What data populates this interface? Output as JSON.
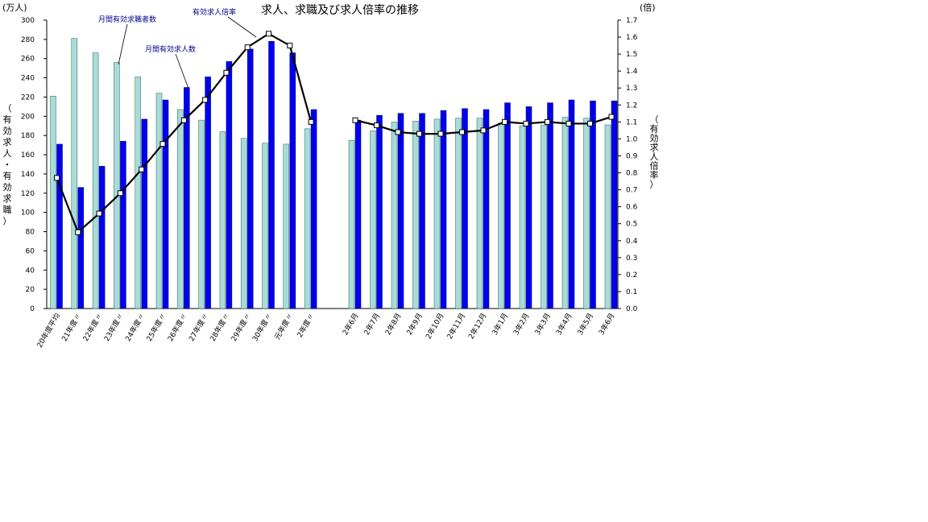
{
  "chart_data": {
    "type": "bar",
    "title": "求人、求職及び求人倍率の推移",
    "y_left": {
      "unit": "(万人)",
      "label": [
        "（",
        "有",
        "効",
        "求",
        "人",
        "・",
        "有",
        "効",
        "求",
        "職",
        "）"
      ],
      "lim": [
        0,
        300
      ],
      "step": 20
    },
    "y_right": {
      "unit": "(倍)",
      "label": [
        "（",
        "有",
        "効",
        "求",
        "人",
        "倍",
        "率",
        "）"
      ],
      "lim": [
        0.0,
        1.7
      ],
      "step": 0.1
    },
    "categories": [
      "20年度平均",
      "21年度〃",
      "22年度〃",
      "23年度〃",
      "24年度〃",
      "25年度〃",
      "26年度〃",
      "27年度〃",
      "28年度〃",
      "29年度〃",
      "30年度〃",
      "元年度〃",
      "2年度〃",
      "2年6月",
      "2年7月",
      "2年8月",
      "2年9月",
      "2年10月",
      "2年11月",
      "2年12月",
      "3年1月",
      "3年2月",
      "3年3月",
      "3年4月",
      "3年5月",
      "3年6月"
    ],
    "series": [
      {
        "name": "月間有効求職者数",
        "color": "#a8dcd6",
        "axis": "left",
        "values": [
          221,
          281,
          266,
          256,
          241,
          224,
          207,
          196,
          184,
          177,
          172,
          171,
          187,
          175,
          185,
          194,
          195,
          197,
          198,
          198,
          193,
          190,
          191,
          199,
          198,
          191
        ]
      },
      {
        "name": "月間有効求人数",
        "color": "#0000ee",
        "axis": "left",
        "values": [
          171,
          126,
          148,
          174,
          197,
          217,
          230,
          241,
          257,
          270,
          278,
          266,
          207,
          196,
          201,
          203,
          203,
          206,
          208,
          207,
          214,
          210,
          214,
          217,
          216,
          216
        ]
      },
      {
        "name": "有効求人倍率",
        "color": "#000000",
        "axis": "right",
        "type": "line",
        "values": [
          0.77,
          0.45,
          0.56,
          0.68,
          0.82,
          0.97,
          1.11,
          1.23,
          1.39,
          1.54,
          1.62,
          1.55,
          1.1,
          1.11,
          1.08,
          1.04,
          1.03,
          1.03,
          1.04,
          1.05,
          1.1,
          1.09,
          1.1,
          1.09,
          1.09,
          1.13
        ]
      }
    ],
    "annotations": [
      "月間有効求職者数",
      "月間有効求人数",
      "有効求人倍率"
    ]
  }
}
